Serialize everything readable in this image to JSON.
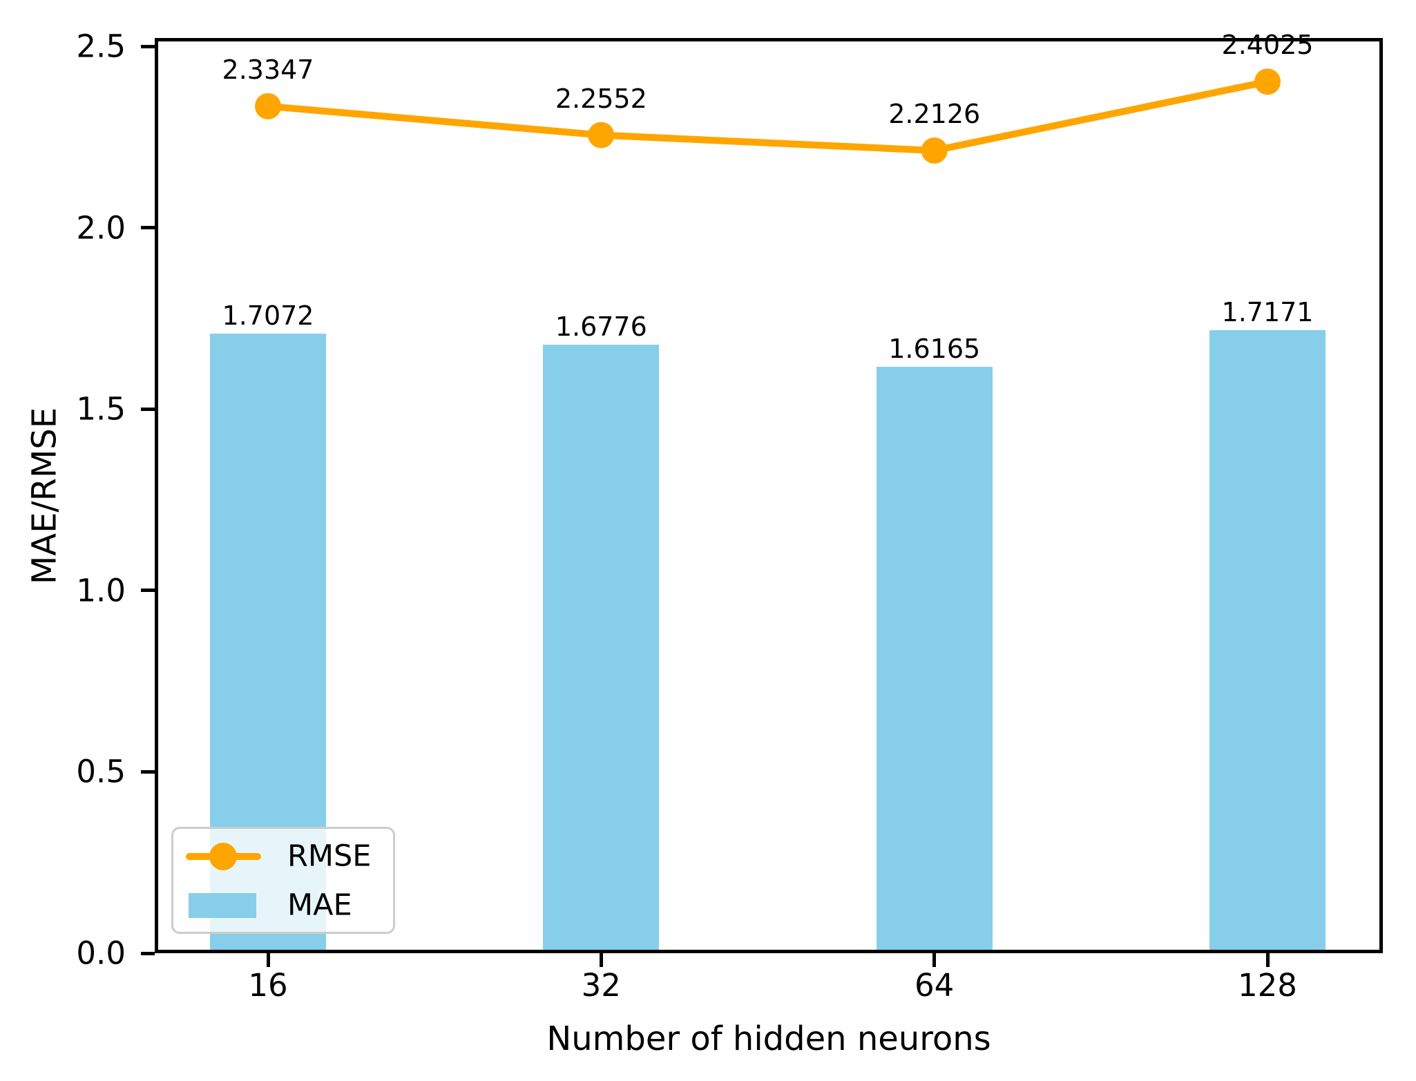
{
  "chart_data": {
    "type": "bar+line",
    "categories": [
      "16",
      "32",
      "64",
      "128"
    ],
    "series": [
      {
        "name": "RMSE",
        "type": "line",
        "color": "#FFA500",
        "values": [
          2.3347,
          2.2552,
          2.2126,
          2.4025
        ]
      },
      {
        "name": "MAE",
        "type": "bar",
        "color": "#87CEEB",
        "values": [
          1.7072,
          1.6776,
          1.6165,
          1.7171
        ]
      }
    ],
    "xlabel": "Number of hidden neurons",
    "ylabel": "MAE/RMSE",
    "ylim": [
      0.0,
      2.52
    ],
    "yticks": [
      "0.0",
      "0.5",
      "1.0",
      "1.5",
      "2.0",
      "2.5"
    ],
    "value_label_decimals": 4,
    "axis_color": "#000000",
    "legend": {
      "position": "lower-left",
      "entries": [
        "RMSE",
        "MAE"
      ]
    },
    "grid": false
  }
}
